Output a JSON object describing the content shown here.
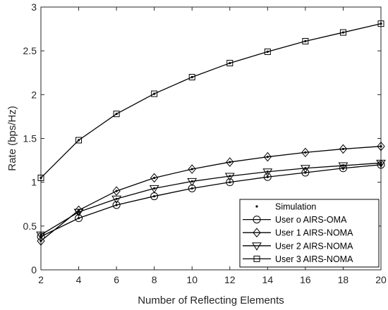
{
  "chart_data": {
    "type": "line",
    "xlabel": "Number of Reflecting Elements",
    "ylabel": "Rate (bps/Hz)",
    "xlim": [
      2,
      20
    ],
    "ylim": [
      0,
      3
    ],
    "xticks": [
      "2",
      "4",
      "6",
      "8",
      "10",
      "12",
      "14",
      "16",
      "18",
      "20"
    ],
    "yticks": [
      "0",
      "0.5",
      "1",
      "1.5",
      "2",
      "2.5",
      "3"
    ],
    "grid": false,
    "legend_position": "bottom-right",
    "x": [
      2,
      4,
      6,
      8,
      10,
      12,
      14,
      16,
      18,
      20
    ],
    "simulation_label": "Simulation",
    "series": [
      {
        "name": "User o AIRS-OMA",
        "marker": "circle",
        "values": [
          0.38,
          0.59,
          0.74,
          0.84,
          0.93,
          1.0,
          1.06,
          1.11,
          1.16,
          1.2
        ]
      },
      {
        "name": "User 1 AIRS-NOMA",
        "marker": "diamond",
        "values": [
          0.33,
          0.68,
          0.9,
          1.05,
          1.15,
          1.23,
          1.29,
          1.34,
          1.38,
          1.41
        ]
      },
      {
        "name": "User 2 AIRS-NOMA",
        "marker": "triangle-down",
        "values": [
          0.4,
          0.66,
          0.81,
          0.93,
          1.01,
          1.07,
          1.12,
          1.16,
          1.19,
          1.22
        ]
      },
      {
        "name": "User 3 AIRS-NOMA",
        "marker": "square",
        "values": [
          1.05,
          1.48,
          1.78,
          2.01,
          2.2,
          2.36,
          2.49,
          2.61,
          2.71,
          2.81
        ]
      }
    ],
    "colors": {
      "line": "#000000",
      "axis": "#262626"
    }
  }
}
